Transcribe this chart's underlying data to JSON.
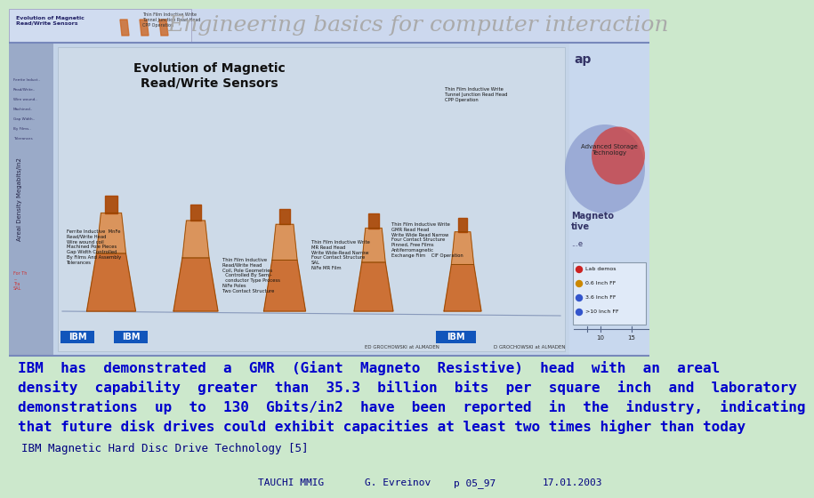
{
  "bg_color": "#cce8cc",
  "title_text": "Engineering basics for computer interaction",
  "title_color": "#aaaaaa",
  "title_fontsize": 18,
  "title_style": "italic",
  "main_text_lines": [
    "IBM  has  demonstrated  a  GMR  (Giant  Magneto  Resistive)  head  with  an  areal",
    "density  capability  greater  than  35.3  billion  bits  per  square  inch  and  laboratory",
    "demonstrations  up  to  130  Gbits/in2  have  been  reported  in  the  industry,  indicating",
    "that future disk drives could exhibit capacities at least two times higher than today"
  ],
  "main_text_color": "#0000cc",
  "main_text_fontsize": 11.5,
  "ref_text": "IBM Magnetic Hard Disc Drive Technology [5]",
  "ref_color": "#000080",
  "ref_fontsize": 9,
  "footer_items": [
    "TAUCHI MMIG",
    "G. Evreinov",
    "p 05_97",
    "17.01.2003"
  ],
  "footer_color": "#000080",
  "footer_fontsize": 8,
  "header_bg": "#ccd8ee",
  "slide_bg": "#b8cce0",
  "slide_left_bg": "#9aaac8",
  "slide_center_bg": "#c0d0e8",
  "slide_right_bg": "#c8d8f0"
}
